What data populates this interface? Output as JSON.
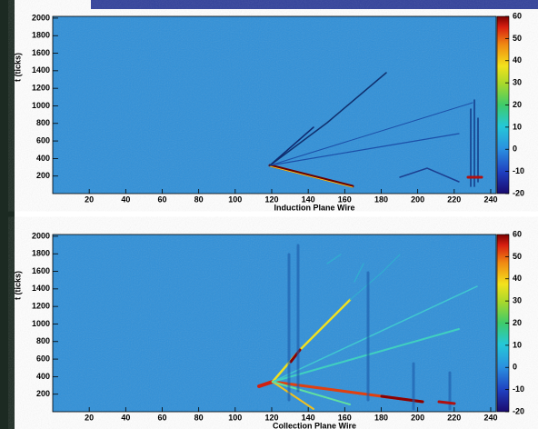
{
  "chart_data": [
    {
      "type": "heatmap",
      "x_label": "Induction Plane Wire",
      "y_label": "t (ticks)",
      "xlim": [
        0,
        243
      ],
      "xticks": [
        20,
        40,
        60,
        80,
        100,
        120,
        140,
        160,
        180,
        200,
        220,
        240
      ],
      "ylim": [
        0,
        2020
      ],
      "yticks": [
        200,
        400,
        600,
        800,
        1000,
        1200,
        1400,
        1600,
        1800,
        2000
      ],
      "zlim": [
        -20,
        60
      ],
      "zticks": [
        -20,
        -10,
        0,
        10,
        20,
        30,
        40,
        50,
        60
      ]
    },
    {
      "type": "heatmap",
      "x_label": "Collection Plane Wire",
      "y_label": "t (ticks)",
      "xlim": [
        0,
        243
      ],
      "xticks": [
        20,
        40,
        60,
        80,
        100,
        120,
        140,
        160,
        180,
        200,
        220,
        240
      ],
      "ylim": [
        0,
        2020
      ],
      "yticks": [
        200,
        400,
        600,
        800,
        1000,
        1200,
        1400,
        1600,
        1800,
        2000
      ],
      "zlim": [
        -20,
        60
      ],
      "zticks": [
        -20,
        -10,
        0,
        10,
        20,
        30,
        40,
        50,
        60
      ]
    }
  ]
}
